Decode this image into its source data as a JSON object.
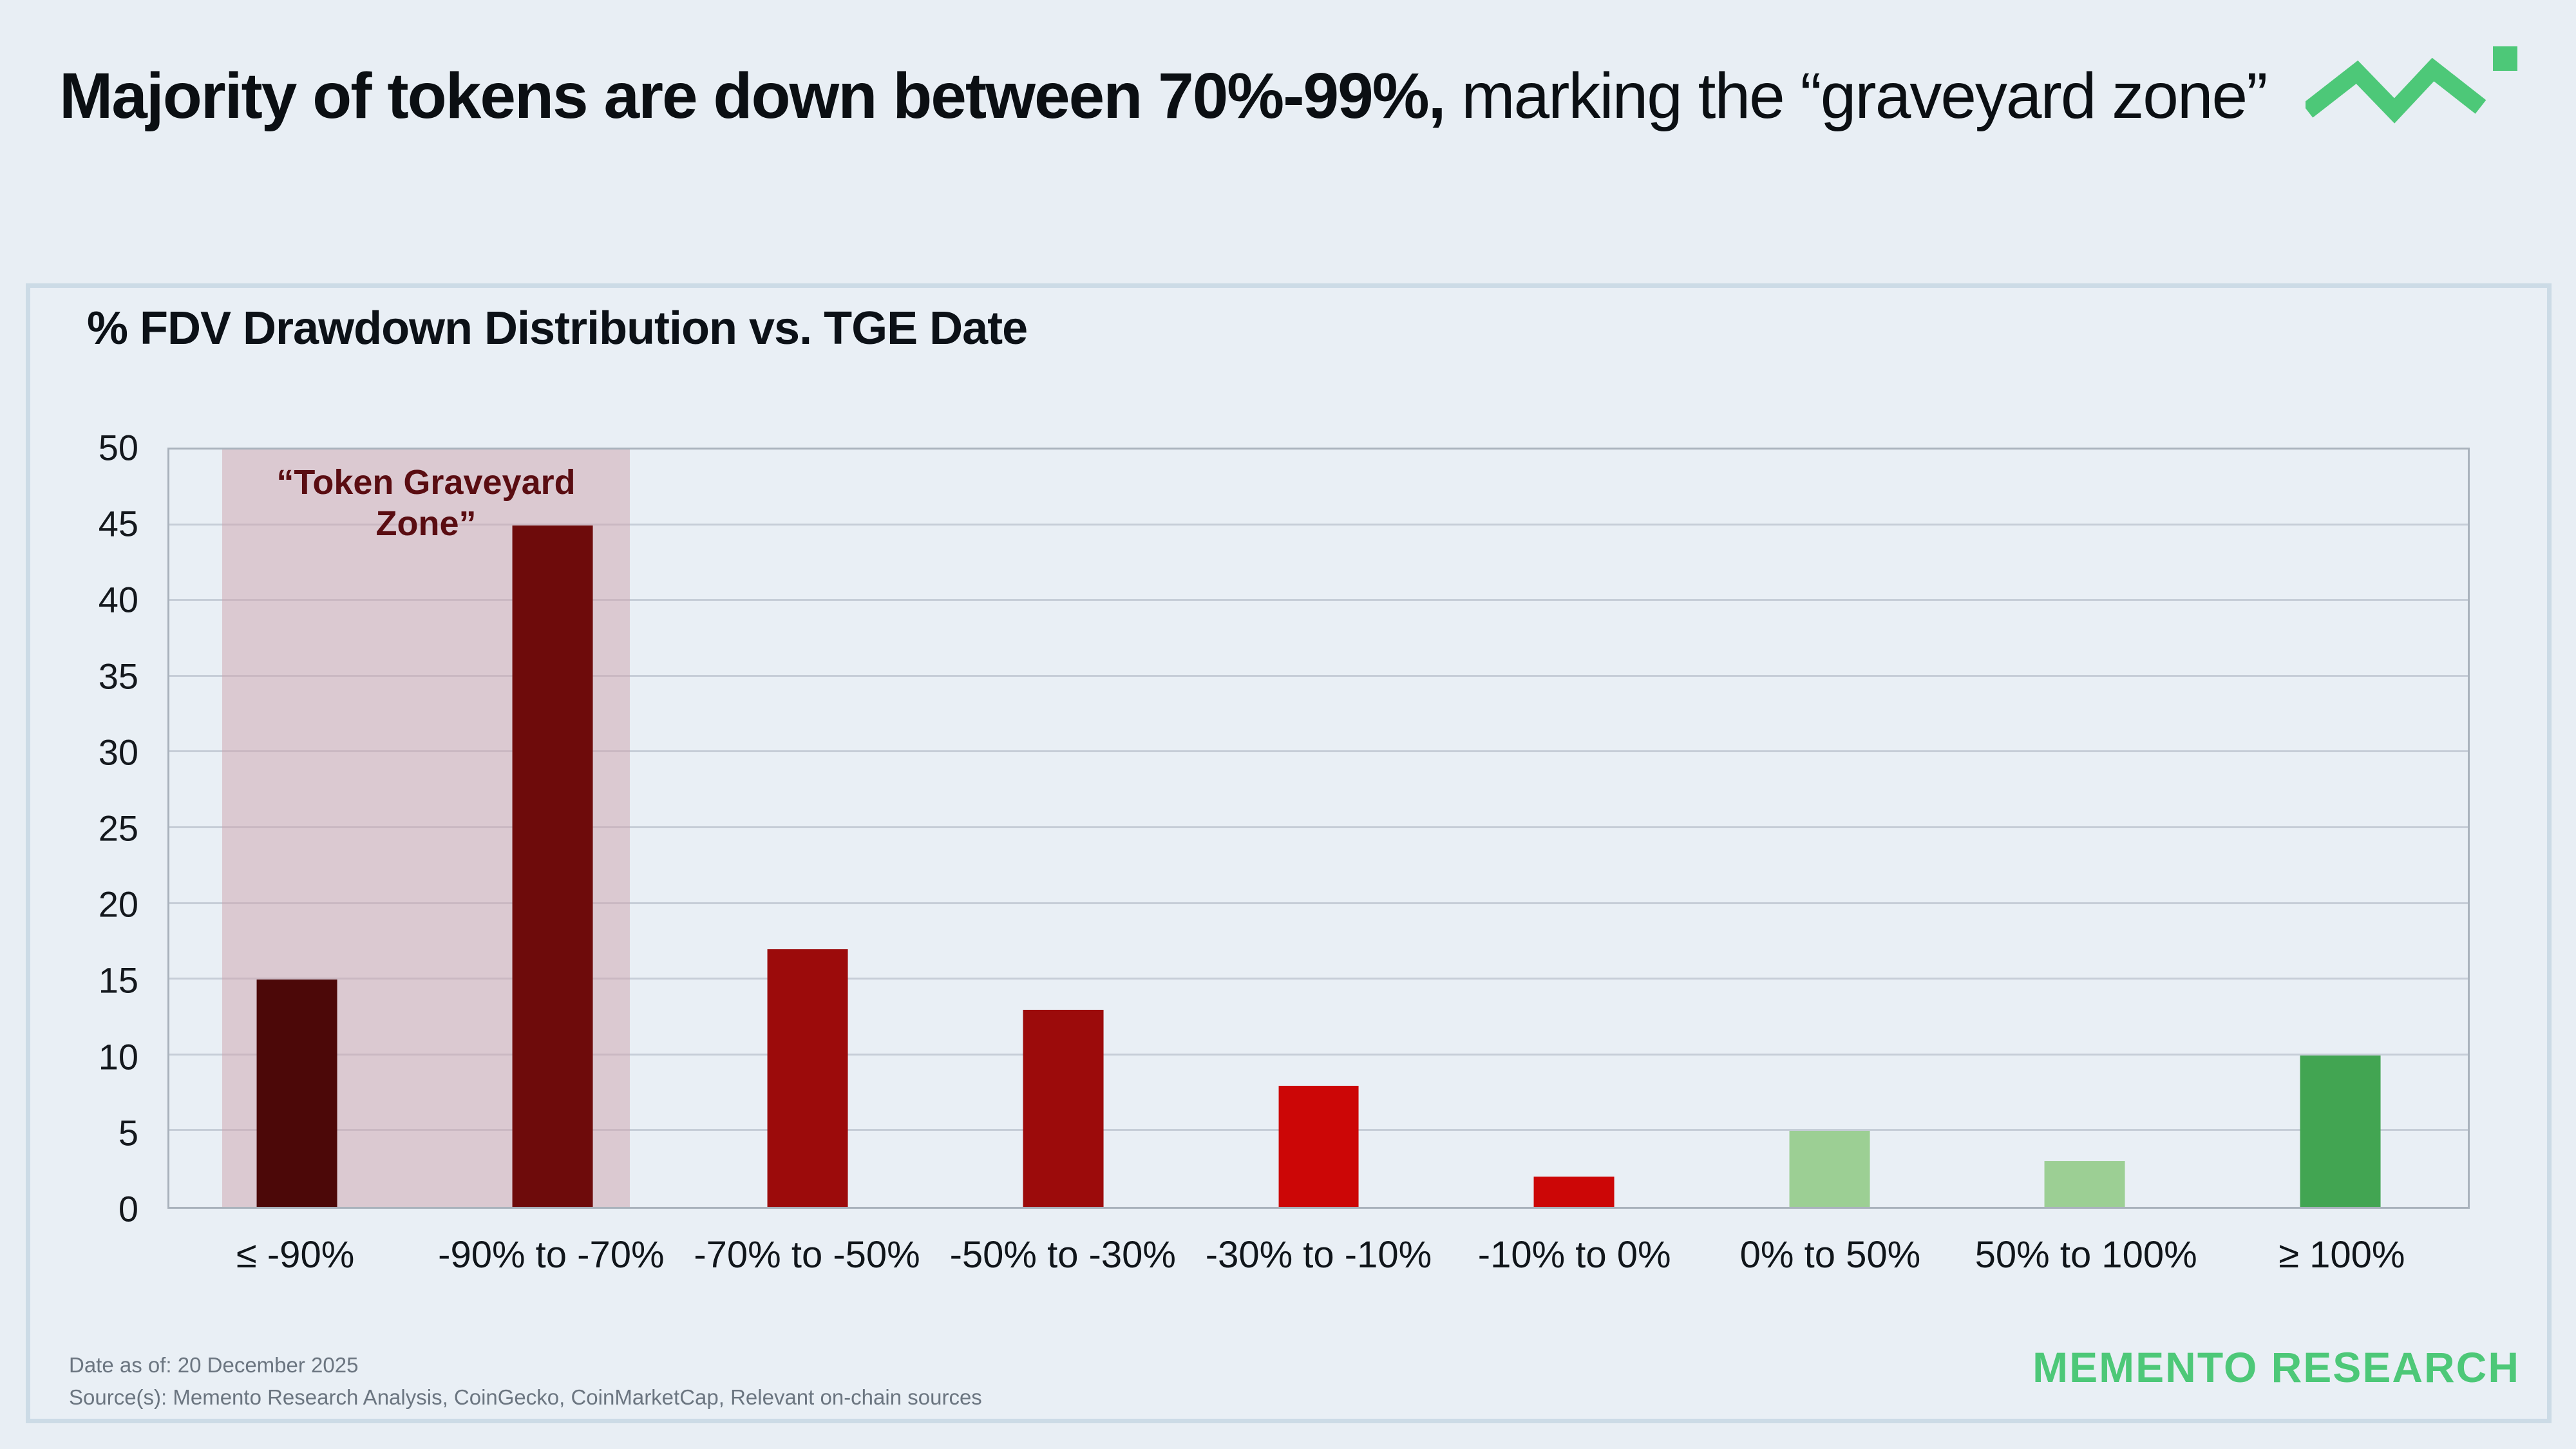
{
  "header": {
    "headline_bold": "Majority of tokens are down between 70%-99%,",
    "headline_regular": " marking the “graveyard zone”"
  },
  "branding": {
    "accent_green": "#4dc878",
    "wordmark": "MEMENTO RESEARCH"
  },
  "footer": {
    "date_line": "Date as of: 20 December 2025",
    "source_line": "Source(s): Memento Research Analysis, CoinGecko, CoinMarketCap, Relevant on-chain sources"
  },
  "chart_data": {
    "type": "bar",
    "title": "% FDV Drawdown Distribution vs. TGE Date",
    "categories": [
      "≤ -90%",
      "-90% to -70%",
      "-70% to -50%",
      "-50% to -30%",
      "-30% to -10%",
      "-10% to 0%",
      "0% to 50%",
      "50% to 100%",
      "≥ 100%"
    ],
    "values": [
      15,
      45,
      17,
      13,
      8,
      2,
      5,
      3,
      10
    ],
    "bar_colors": [
      "#4c0808",
      "#6e0b0b",
      "#9c0b0b",
      "#9c0b0b",
      "#cc0606",
      "#cc0606",
      "#9ccf94",
      "#9ccf94",
      "#42a552"
    ],
    "xlabel": "",
    "ylabel": "",
    "ylim": [
      0,
      50
    ],
    "yticks": [
      0,
      5,
      10,
      15,
      20,
      25,
      30,
      35,
      40,
      45,
      50
    ],
    "grid": "horizontal",
    "legend": "none",
    "annotation": {
      "label": "“Token Graveyard Zone”",
      "text_color": "#5a0d12",
      "fill_rgba": "rgba(205,163,174,0.5)",
      "span": {
        "from_category_fraction": 0.207,
        "to_category_fraction": 1.803
      }
    }
  }
}
